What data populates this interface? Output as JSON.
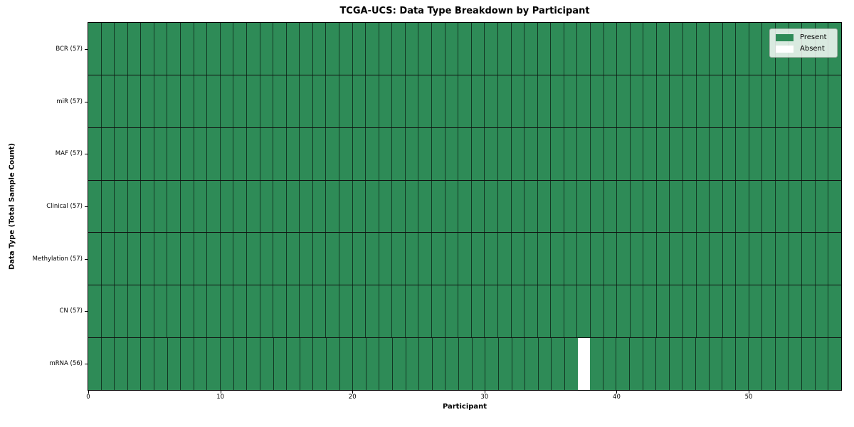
{
  "chart_data": {
    "type": "heatmap",
    "title": "TCGA-UCS: Data Type Breakdown by Participant",
    "xlabel": "Participant",
    "ylabel": "Data Type (Total Sample Count)",
    "x_ticks": [
      0,
      10,
      20,
      30,
      40,
      50
    ],
    "xlim": [
      0,
      57
    ],
    "n_participants": 57,
    "grid": true,
    "rows": [
      {
        "label": "BCR (57)",
        "data_type": "BCR",
        "total": 57,
        "absent_participants": []
      },
      {
        "label": "miR (57)",
        "data_type": "miR",
        "total": 57,
        "absent_participants": []
      },
      {
        "label": "MAF (57)",
        "data_type": "MAF",
        "total": 57,
        "absent_participants": []
      },
      {
        "label": "Clinical (57)",
        "data_type": "Clinical",
        "total": 57,
        "absent_participants": []
      },
      {
        "label": "Methylation (57)",
        "data_type": "Methylation",
        "total": 57,
        "absent_participants": []
      },
      {
        "label": "CN (57)",
        "data_type": "CN",
        "total": 57,
        "absent_participants": []
      },
      {
        "label": "mRNA (56)",
        "data_type": "mRNA",
        "total": 56,
        "absent_participants": [
          37
        ]
      }
    ],
    "legend": {
      "position": "upper right",
      "entries": [
        {
          "label": "Present",
          "color": "#2e8b57"
        },
        {
          "label": "Absent",
          "color": "#ffffff"
        }
      ]
    },
    "colors": {
      "present": "#2e8b57",
      "absent": "#ffffff",
      "cell_edge": "rgba(0,0,0,0.6)",
      "row_separator": "#101010",
      "axis": "#000000"
    }
  }
}
